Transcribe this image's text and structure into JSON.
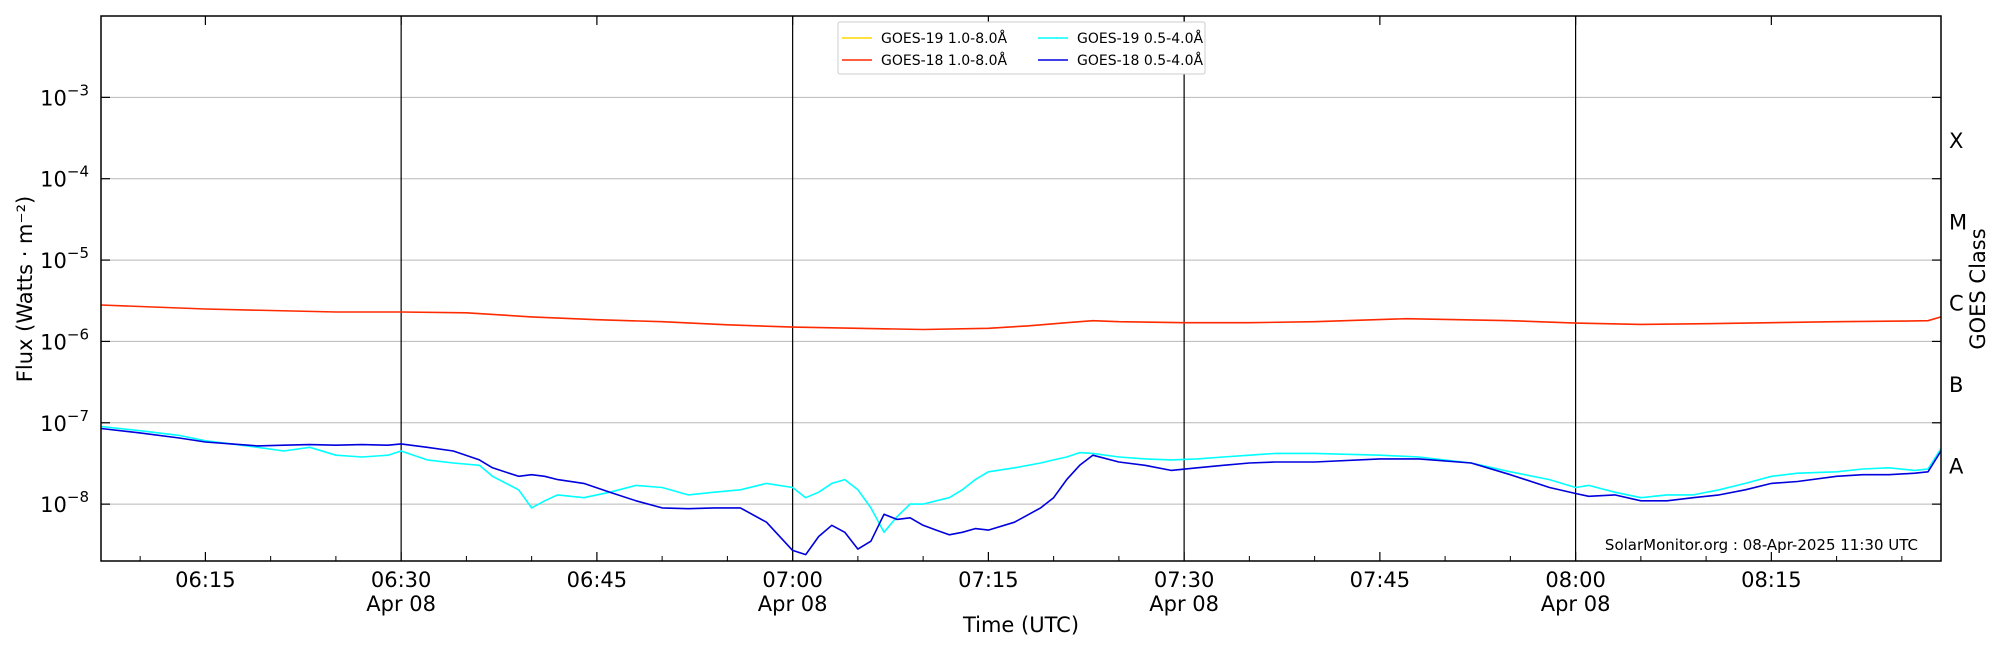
{
  "chart_data": {
    "type": "line",
    "xlabel": "Time (UTC)",
    "ylabel": "Flux (Watts · m⁻²)",
    "y2label": "GOES Class",
    "yscale": "log",
    "xlim": [
      "06:07",
      "08:28"
    ],
    "ylim": [
      2e-09,
      0.01
    ],
    "grid": "horizontal",
    "legend_position": "top-center",
    "credit": "SolarMonitor.org : 08-Apr-2025 11:30 UTC",
    "x_ticks": [
      {
        "time": "06:15",
        "label": "06:15",
        "sub": ""
      },
      {
        "time": "06:30",
        "label": "06:30",
        "sub": "Apr 08"
      },
      {
        "time": "06:45",
        "label": "06:45",
        "sub": ""
      },
      {
        "time": "07:00",
        "label": "07:00",
        "sub": "Apr 08"
      },
      {
        "time": "07:15",
        "label": "07:15",
        "sub": ""
      },
      {
        "time": "07:30",
        "label": "07:30",
        "sub": "Apr 08"
      },
      {
        "time": "07:45",
        "label": "07:45",
        "sub": ""
      },
      {
        "time": "08:00",
        "label": "08:00",
        "sub": "Apr 08"
      },
      {
        "time": "08:15",
        "label": "08:15",
        "sub": ""
      }
    ],
    "y_ticks": [
      {
        "value": 1e-08,
        "exp": "−8"
      },
      {
        "value": 1e-07,
        "exp": "−7"
      },
      {
        "value": 1e-06,
        "exp": "−6"
      },
      {
        "value": 1e-05,
        "exp": "−5"
      },
      {
        "value": 0.0001,
        "exp": "−4"
      },
      {
        "value": 0.001,
        "exp": "−3"
      }
    ],
    "tick_base": "10",
    "classes": [
      {
        "label": "A",
        "value": 3e-08
      },
      {
        "label": "B",
        "value": 3e-07
      },
      {
        "label": "C",
        "value": 3e-06
      },
      {
        "label": "M",
        "value": 3e-05
      },
      {
        "label": "X",
        "value": 0.0003
      }
    ],
    "day_markers": [
      "06:30",
      "07:00",
      "07:30",
      "08:00"
    ],
    "series": [
      {
        "name": "GOES-19 1.0-8.0Å",
        "color": "#ffd700",
        "x": [],
        "y": []
      },
      {
        "name": "GOES-18 1.0-8.0Å",
        "color": "#ff2a00",
        "x": [
          "06:07",
          "06:15",
          "06:20",
          "06:25",
          "06:30",
          "06:35",
          "06:40",
          "06:45",
          "06:50",
          "06:55",
          "07:00",
          "07:05",
          "07:10",
          "07:15",
          "07:18",
          "07:21",
          "07:23",
          "07:25",
          "07:30",
          "07:35",
          "07:40",
          "07:47",
          "07:55",
          "08:00",
          "08:05",
          "08:10",
          "08:15",
          "08:20",
          "08:25",
          "08:27",
          "08:28"
        ],
        "y": [
          2.8e-06,
          2.5e-06,
          2.4e-06,
          2.3e-06,
          2.3e-06,
          2.25e-06,
          2e-06,
          1.85e-06,
          1.75e-06,
          1.6e-06,
          1.5e-06,
          1.45e-06,
          1.4e-06,
          1.45e-06,
          1.55e-06,
          1.7e-06,
          1.8e-06,
          1.75e-06,
          1.7e-06,
          1.7e-06,
          1.75e-06,
          1.9e-06,
          1.8e-06,
          1.68e-06,
          1.62e-06,
          1.65e-06,
          1.7e-06,
          1.75e-06,
          1.78e-06,
          1.8e-06,
          2e-06
        ]
      },
      {
        "name": "GOES-19 0.5-4.0Å",
        "color": "#00ffff",
        "x": [
          "06:07",
          "06:10",
          "06:13",
          "06:15",
          "06:17",
          "06:19",
          "06:21",
          "06:23",
          "06:25",
          "06:27",
          "06:29",
          "06:30",
          "06:32",
          "06:34",
          "06:36",
          "06:37",
          "06:39",
          "06:40",
          "06:41",
          "06:42",
          "06:44",
          "06:46",
          "06:48",
          "06:50",
          "06:52",
          "06:54",
          "06:56",
          "06:58",
          "07:00",
          "07:01",
          "07:02",
          "07:03",
          "07:04",
          "07:05",
          "07:06",
          "07:07",
          "07:08",
          "07:09",
          "07:10",
          "07:11",
          "07:12",
          "07:13",
          "07:14",
          "07:15",
          "07:17",
          "07:19",
          "07:20",
          "07:21",
          "07:22",
          "07:23",
          "07:25",
          "07:27",
          "07:29",
          "07:31",
          "07:33",
          "07:35",
          "07:37",
          "07:40",
          "07:45",
          "07:48",
          "07:52",
          "07:55",
          "07:58",
          "08:00",
          "08:01",
          "08:03",
          "08:05",
          "08:07",
          "08:09",
          "08:11",
          "08:13",
          "08:15",
          "08:17",
          "08:20",
          "08:22",
          "08:24",
          "08:26",
          "08:27",
          "08:28"
        ],
        "y": [
          9e-08,
          8e-08,
          7e-08,
          6e-08,
          5.5e-08,
          5e-08,
          4.5e-08,
          5e-08,
          4e-08,
          3.8e-08,
          4e-08,
          4.5e-08,
          3.5e-08,
          3.2e-08,
          3e-08,
          2.2e-08,
          1.5e-08,
          9e-09,
          1.1e-08,
          1.3e-08,
          1.2e-08,
          1.4e-08,
          1.7e-08,
          1.6e-08,
          1.3e-08,
          1.4e-08,
          1.5e-08,
          1.8e-08,
          1.6e-08,
          1.2e-08,
          1.4e-08,
          1.8e-08,
          2e-08,
          1.5e-08,
          9e-09,
          4.5e-09,
          7e-09,
          1e-08,
          1e-08,
          1.1e-08,
          1.2e-08,
          1.5e-08,
          2e-08,
          2.5e-08,
          2.8e-08,
          3.2e-08,
          3.5e-08,
          3.8e-08,
          4.3e-08,
          4.2e-08,
          3.8e-08,
          3.6e-08,
          3.5e-08,
          3.6e-08,
          3.8e-08,
          4e-08,
          4.2e-08,
          4.2e-08,
          4e-08,
          3.8e-08,
          3.2e-08,
          2.5e-08,
          2e-08,
          1.6e-08,
          1.7e-08,
          1.4e-08,
          1.2e-08,
          1.3e-08,
          1.3e-08,
          1.5e-08,
          1.8e-08,
          2.2e-08,
          2.4e-08,
          2.5e-08,
          2.7e-08,
          2.8e-08,
          2.6e-08,
          2.7e-08,
          4.8e-08
        ]
      },
      {
        "name": "GOES-18 0.5-4.0Å",
        "color": "#0000dd",
        "x": [
          "06:07",
          "06:10",
          "06:13",
          "06:15",
          "06:17",
          "06:19",
          "06:21",
          "06:23",
          "06:25",
          "06:27",
          "06:29",
          "06:30",
          "06:32",
          "06:34",
          "06:36",
          "06:37",
          "06:39",
          "06:40",
          "06:41",
          "06:42",
          "06:44",
          "06:46",
          "06:48",
          "06:50",
          "06:52",
          "06:54",
          "06:56",
          "06:58",
          "07:00",
          "07:01",
          "07:02",
          "07:03",
          "07:04",
          "07:05",
          "07:06",
          "07:07",
          "07:08",
          "07:09",
          "07:10",
          "07:11",
          "07:12",
          "07:13",
          "07:14",
          "07:15",
          "07:17",
          "07:19",
          "07:20",
          "07:21",
          "07:22",
          "07:23",
          "07:25",
          "07:27",
          "07:29",
          "07:31",
          "07:33",
          "07:35",
          "07:37",
          "07:40",
          "07:45",
          "07:48",
          "07:52",
          "07:55",
          "07:58",
          "08:00",
          "08:01",
          "08:03",
          "08:05",
          "08:07",
          "08:09",
          "08:11",
          "08:13",
          "08:15",
          "08:17",
          "08:20",
          "08:22",
          "08:24",
          "08:26",
          "08:27",
          "08:28"
        ],
        "y": [
          8.5e-08,
          7.5e-08,
          6.5e-08,
          5.8e-08,
          5.5e-08,
          5.2e-08,
          5.3e-08,
          5.4e-08,
          5.3e-08,
          5.4e-08,
          5.3e-08,
          5.5e-08,
          5e-08,
          4.5e-08,
          3.5e-08,
          2.8e-08,
          2.2e-08,
          2.3e-08,
          2.2e-08,
          2e-08,
          1.8e-08,
          1.4e-08,
          1.1e-08,
          9e-09,
          8.8e-09,
          9e-09,
          9e-09,
          6e-09,
          2.7e-09,
          2.4e-09,
          4e-09,
          5.5e-09,
          4.5e-09,
          2.8e-09,
          3.5e-09,
          7.5e-09,
          6.5e-09,
          6.8e-09,
          5.5e-09,
          4.8e-09,
          4.2e-09,
          4.5e-09,
          5e-09,
          4.8e-09,
          6e-09,
          9e-09,
          1.2e-08,
          2e-08,
          3e-08,
          4e-08,
          3.3e-08,
          3e-08,
          2.6e-08,
          2.8e-08,
          3e-08,
          3.2e-08,
          3.3e-08,
          3.3e-08,
          3.6e-08,
          3.6e-08,
          3.2e-08,
          2.3e-08,
          1.6e-08,
          1.35e-08,
          1.25e-08,
          1.3e-08,
          1.1e-08,
          1.1e-08,
          1.2e-08,
          1.3e-08,
          1.5e-08,
          1.8e-08,
          1.9e-08,
          2.2e-08,
          2.3e-08,
          2.3e-08,
          2.4e-08,
          2.5e-08,
          4.5e-08
        ]
      }
    ]
  }
}
